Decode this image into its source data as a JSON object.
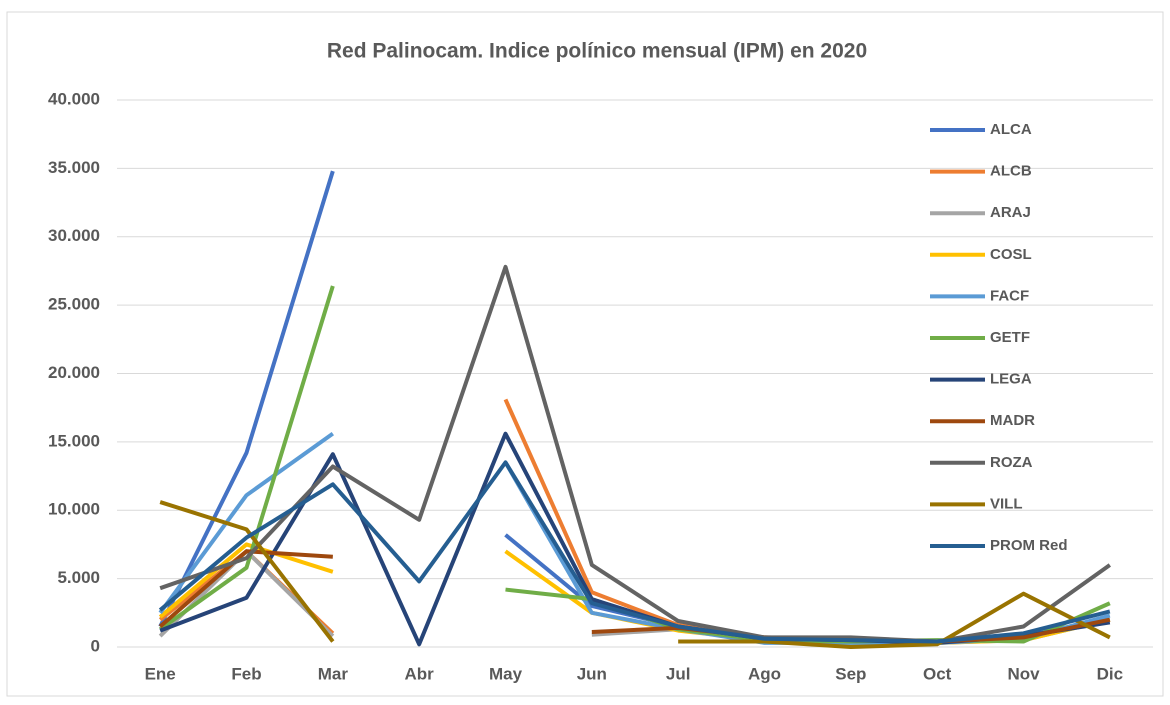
{
  "chart_data": {
    "type": "line",
    "title": "Red Palinocam. Indice polínico mensual (IPM) en 2020",
    "categories": [
      "Ene",
      "Feb",
      "Mar",
      "Abr",
      "May",
      "Jun",
      "Jul",
      "Ago",
      "Sep",
      "Oct",
      "Nov",
      "Dic"
    ],
    "ylim": [
      0,
      40000
    ],
    "yticks": [
      0,
      {
        "value": 5000,
        "label": "5.000"
      },
      {
        "value": 10000,
        "label": "10.000"
      },
      {
        "value": 15000,
        "label": "15.000"
      },
      {
        "value": 20000,
        "label": "20.000"
      },
      {
        "value": 25000,
        "label": "25.000"
      },
      {
        "value": 30000,
        "label": "30.000"
      },
      {
        "value": 35000,
        "label": "35.000"
      },
      {
        "value": 40000,
        "label": "40.000"
      }
    ],
    "grid": true,
    "legend": "right",
    "series": [
      {
        "name": "ALCA",
        "color": "#4472c4",
        "values": [
          1500,
          14200,
          34800,
          null,
          8200,
          3000,
          1500,
          600,
          400,
          300,
          800,
          2000
        ]
      },
      {
        "name": "ALCB",
        "color": "#ed7d31",
        "values": [
          2000,
          7000,
          1000,
          null,
          18100,
          4000,
          1600,
          700,
          500,
          400,
          700,
          2000
        ]
      },
      {
        "name": "ARAJ",
        "color": "#a5a5a5",
        "values": [
          800,
          7000,
          800,
          null,
          null,
          900,
          1300,
          500,
          300,
          300,
          500,
          2000
        ]
      },
      {
        "name": "COSL",
        "color": "#ffc000",
        "values": [
          2200,
          7500,
          5500,
          null,
          7000,
          2500,
          1200,
          500,
          300,
          300,
          500,
          2000
        ]
      },
      {
        "name": "FACF",
        "color": "#5b9bd5",
        "values": [
          2500,
          11100,
          15600,
          null,
          13500,
          2500,
          1300,
          300,
          300,
          300,
          600,
          2300
        ]
      },
      {
        "name": "GETF",
        "color": "#70ad47",
        "values": [
          1300,
          5800,
          26400,
          null,
          4200,
          3500,
          1300,
          500,
          400,
          500,
          400,
          3200
        ]
      },
      {
        "name": "LEGA",
        "color": "#264478",
        "values": [
          1200,
          3600,
          14100,
          200,
          15600,
          3500,
          1500,
          600,
          500,
          300,
          800,
          1800
        ]
      },
      {
        "name": "MADR",
        "color": "#9e480e",
        "values": [
          1500,
          7000,
          6600,
          null,
          null,
          1100,
          1400,
          700,
          600,
          400,
          700,
          2000
        ]
      },
      {
        "name": "ROZA",
        "color": "#636363",
        "values": [
          4300,
          6500,
          13200,
          9300,
          27800,
          6000,
          1900,
          700,
          700,
          400,
          1500,
          6000
        ]
      },
      {
        "name": "VILL",
        "color": "#997300",
        "values": [
          10600,
          8600,
          400,
          null,
          null,
          null,
          400,
          400,
          0,
          200,
          3900,
          700
        ]
      },
      {
        "name": "PROM Red",
        "color": "#255e91",
        "values": [
          2700,
          8000,
          11900,
          4800,
          13500,
          3200,
          1500,
          600,
          500,
          400,
          1000,
          2600
        ]
      }
    ]
  }
}
